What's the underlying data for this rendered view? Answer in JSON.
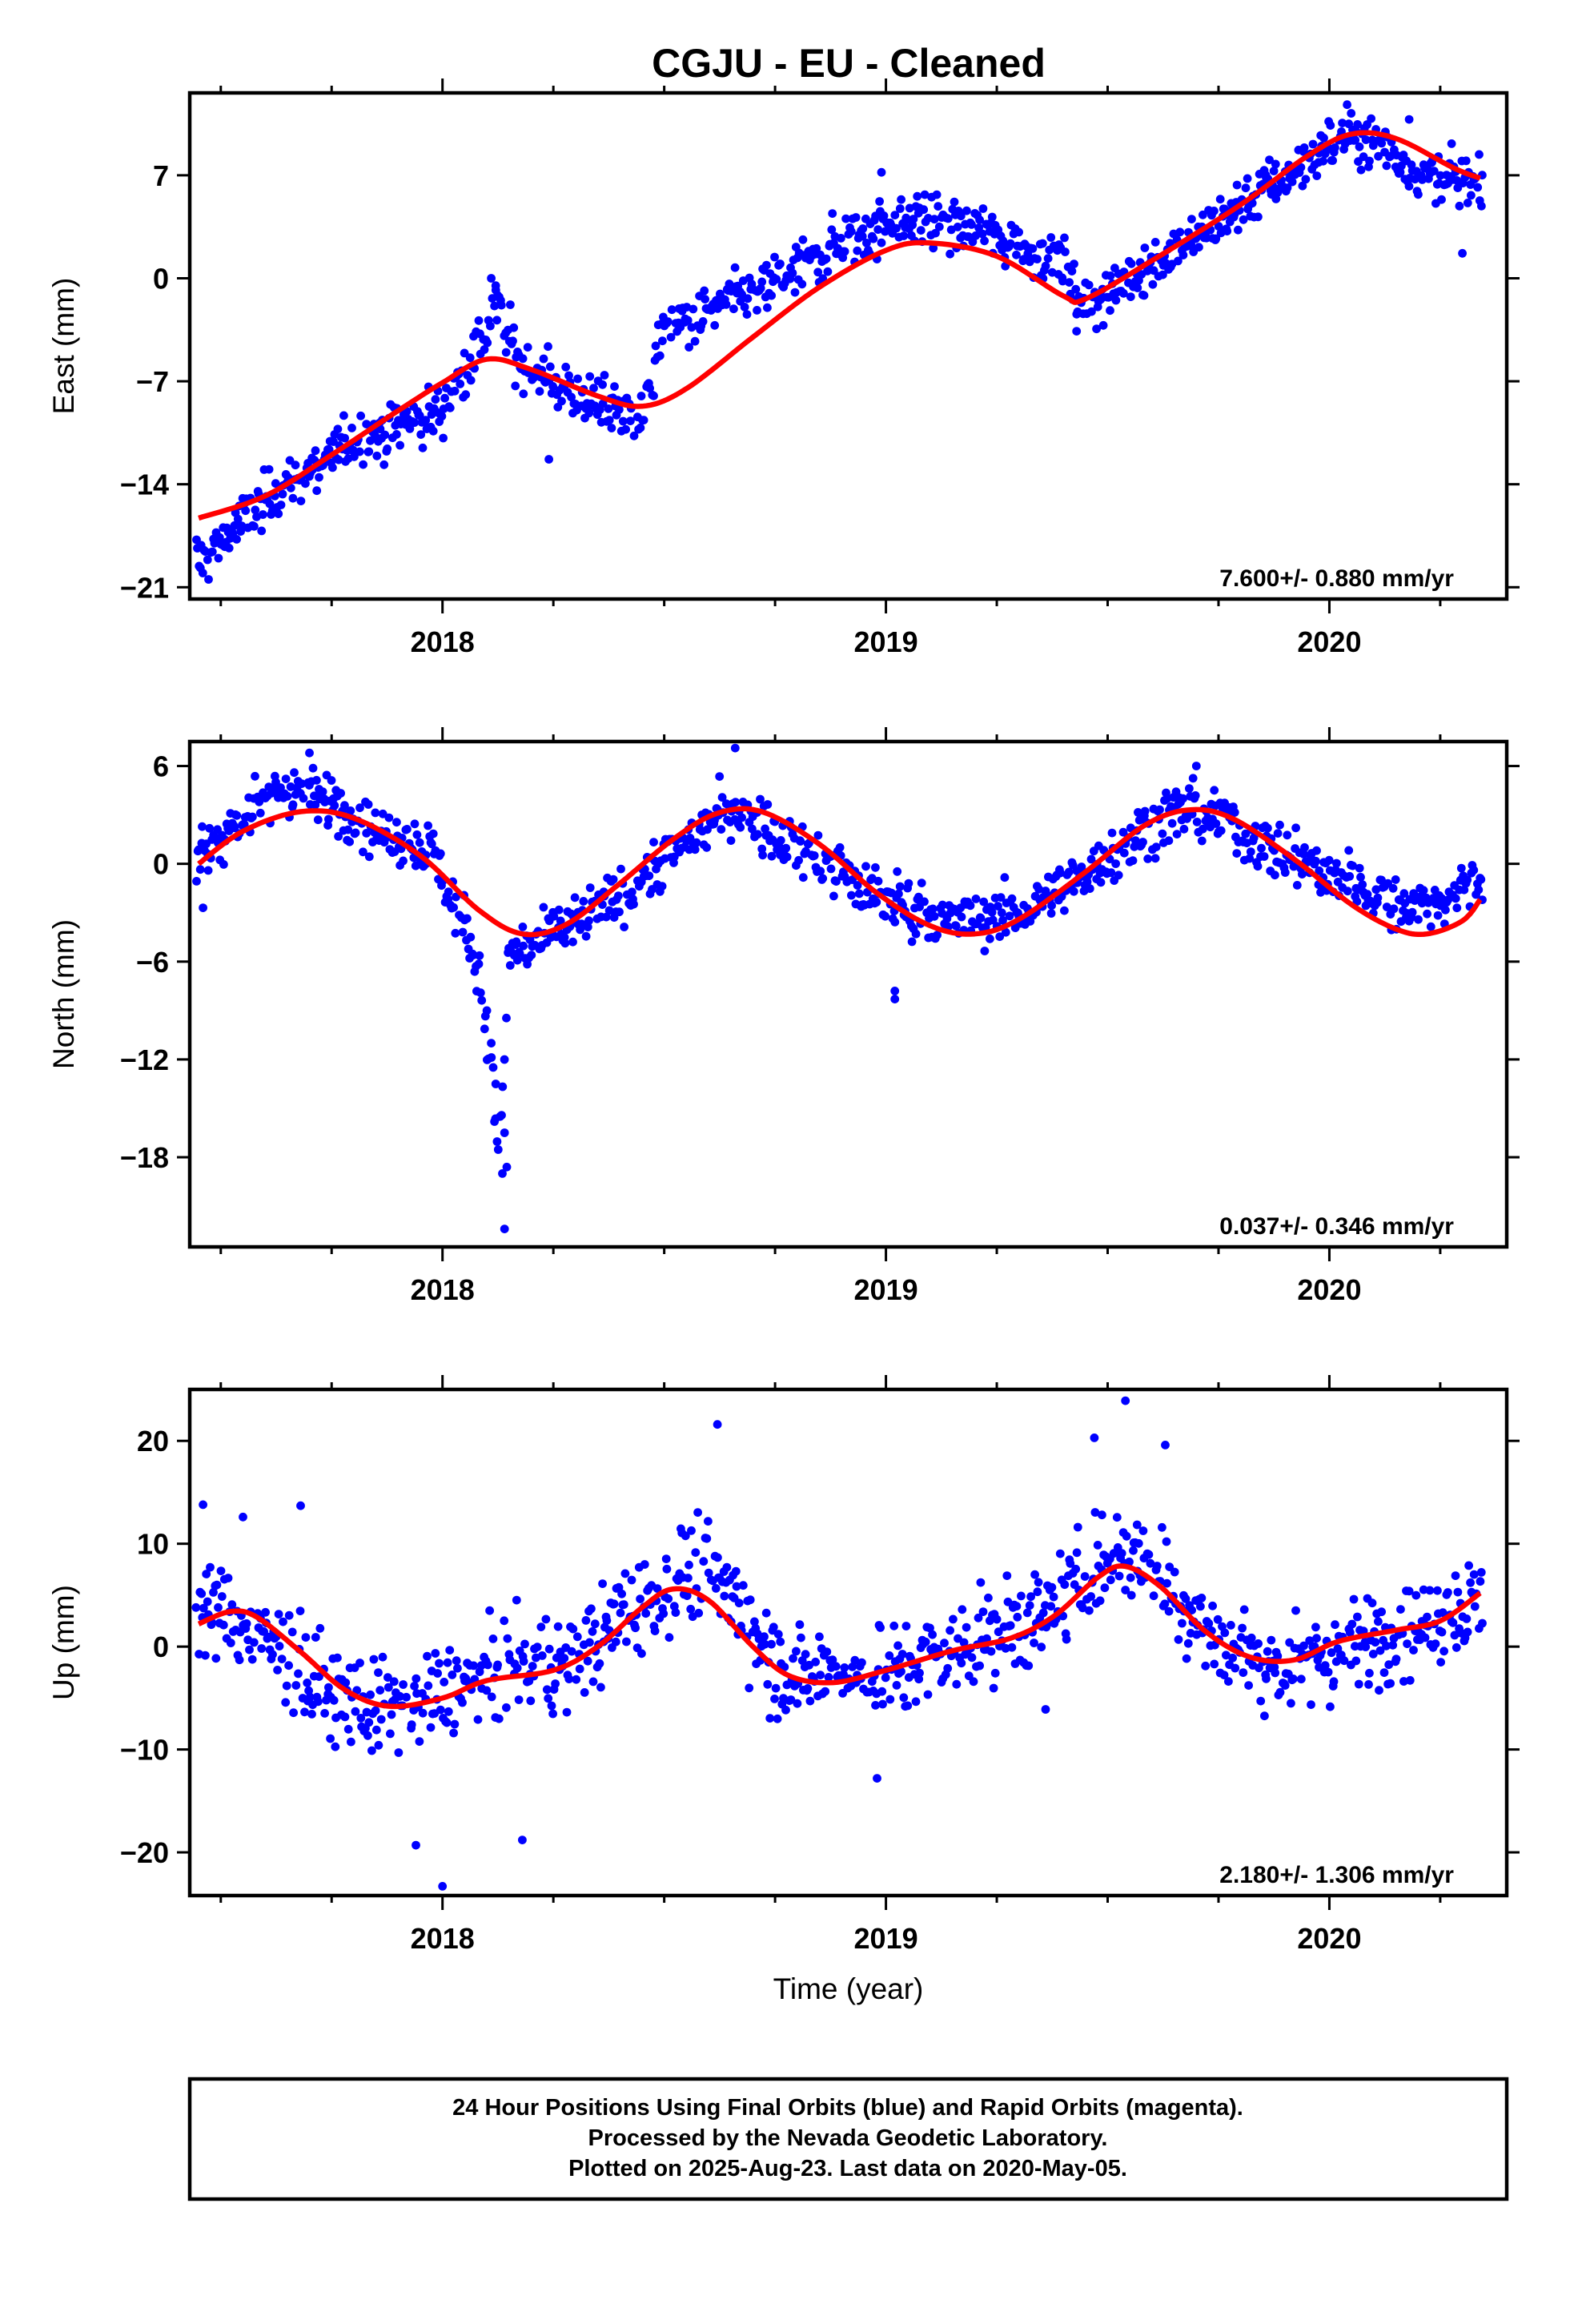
{
  "title": "CGJU  - EU - Cleaned",
  "colors": {
    "points": "#0000ff",
    "fit": "#ff0000",
    "frame": "#000000"
  },
  "footer": {
    "lines": [
      "24 Hour Positions Using Final Orbits (blue) and Rapid Orbits (magenta).",
      "Processed by the Nevada Geodetic Laboratory.",
      "Plotted on 2025-Aug-23. Last data on 2020-May-05."
    ]
  },
  "chart_data": [
    {
      "type": "scatter",
      "ylabel": "East (mm)",
      "xlabel": "",
      "xlim": [
        2017.43,
        2020.4
      ],
      "ylim": [
        -21.8,
        12.6
      ],
      "x_ticks": [
        2018,
        2019,
        2020
      ],
      "x_tick_labels": [
        "2018",
        "2019",
        "2020"
      ],
      "y_ticks": [
        -21,
        -14,
        -7,
        0,
        7
      ],
      "y_tick_labels": [
        "−21",
        "−14",
        "−7",
        "0",
        "7"
      ],
      "rate_label": "7.600+/- 0.880 mm/yr",
      "series": [
        {
          "name": "Final Orbits (blue)",
          "kind": "daily_positions",
          "trend": [
            [
              2017.45,
              -19.3
            ],
            [
              2017.6,
              -15.0
            ],
            [
              2017.8,
              -11.0
            ],
            [
              2018.0,
              -9.0
            ],
            [
              2018.08,
              -4.5
            ],
            [
              2018.12,
              -2.0
            ],
            [
              2018.18,
              -6.0
            ],
            [
              2018.3,
              -8.0
            ],
            [
              2018.45,
              -9.5
            ],
            [
              2018.5,
              -3.5
            ],
            [
              2018.7,
              -1.0
            ],
            [
              2018.9,
              2.5
            ],
            [
              2019.05,
              4.2
            ],
            [
              2019.2,
              3.5
            ],
            [
              2019.4,
              1.0
            ],
            [
              2019.43,
              -1.5
            ],
            [
              2019.5,
              -1.0
            ],
            [
              2019.7,
              3.0
            ],
            [
              2019.9,
              7.0
            ],
            [
              2020.05,
              10.0
            ],
            [
              2020.2,
              7.5
            ],
            [
              2020.34,
              6.0
            ]
          ],
          "scatter": 1.3,
          "outliers": [
            [
              2018.11,
              0.0
            ],
            [
              2018.12,
              -0.5
            ],
            [
              2018.24,
              -12.3
            ],
            [
              2019.43,
              -3.6
            ],
            [
              2020.3,
              1.7
            ],
            [
              2020.04,
              11.8
            ],
            [
              2020.18,
              10.8
            ],
            [
              2018.99,
              7.2
            ]
          ]
        },
        {
          "name": "Fit",
          "kind": "fit_line",
          "points": [
            [
              2017.45,
              -16.3
            ],
            [
              2017.6,
              -14.8
            ],
            [
              2017.75,
              -12.0
            ],
            [
              2017.9,
              -9.0
            ],
            [
              2018.0,
              -7.1
            ],
            [
              2018.1,
              -5.5
            ],
            [
              2018.2,
              -6.2
            ],
            [
              2018.35,
              -8.0
            ],
            [
              2018.45,
              -8.7
            ],
            [
              2018.55,
              -7.5
            ],
            [
              2018.7,
              -4.0
            ],
            [
              2018.85,
              -0.6
            ],
            [
              2019.0,
              1.9
            ],
            [
              2019.1,
              2.4
            ],
            [
              2019.25,
              1.5
            ],
            [
              2019.4,
              -1.2
            ],
            [
              2019.45,
              -1.4
            ],
            [
              2019.6,
              1.2
            ],
            [
              2019.8,
              5.0
            ],
            [
              2019.95,
              8.3
            ],
            [
              2020.05,
              9.8
            ],
            [
              2020.15,
              9.5
            ],
            [
              2020.28,
              7.5
            ],
            [
              2020.34,
              6.8
            ]
          ]
        }
      ]
    },
    {
      "type": "scatter",
      "ylabel": "North (mm)",
      "xlabel": "",
      "xlim": [
        2017.43,
        2020.4
      ],
      "ylim": [
        -23.5,
        7.5
      ],
      "x_ticks": [
        2018,
        2019,
        2020
      ],
      "x_tick_labels": [
        "2018",
        "2019",
        "2020"
      ],
      "y_ticks": [
        -18,
        -12,
        -6,
        0,
        6
      ],
      "y_tick_labels": [
        "−18",
        "−12",
        "−6",
        "0",
        "6"
      ],
      "rate_label": "0.037+/- 0.346 mm/yr",
      "series": [
        {
          "name": "Final Orbits (blue)",
          "kind": "daily_positions",
          "trend": [
            [
              2017.45,
              0.5
            ],
            [
              2017.55,
              3.0
            ],
            [
              2017.65,
              4.8
            ],
            [
              2017.75,
              3.8
            ],
            [
              2017.85,
              2.0
            ],
            [
              2017.98,
              1.0
            ],
            [
              2018.02,
              -2.0
            ],
            [
              2018.08,
              -6.0
            ],
            [
              2018.13,
              -18.0
            ],
            [
              2018.15,
              -5.5
            ],
            [
              2018.25,
              -4.5
            ],
            [
              2018.4,
              -2.0
            ],
            [
              2018.55,
              1.5
            ],
            [
              2018.65,
              3.5
            ],
            [
              2018.8,
              1.2
            ],
            [
              2018.95,
              -1.5
            ],
            [
              2019.05,
              -2.5
            ],
            [
              2019.15,
              -3.5
            ],
            [
              2019.3,
              -3.0
            ],
            [
              2019.45,
              -0.5
            ],
            [
              2019.6,
              2.5
            ],
            [
              2019.7,
              3.5
            ],
            [
              2019.85,
              1.0
            ],
            [
              2019.95,
              0.0
            ],
            [
              2020.05,
              -1.0
            ],
            [
              2020.15,
              -2.5
            ],
            [
              2020.25,
              -2.2
            ],
            [
              2020.34,
              -1.0
            ]
          ],
          "scatter": 1.2,
          "outliers": [
            [
              2017.46,
              -2.7
            ],
            [
              2018.1,
              -9.0
            ],
            [
              2018.11,
              -11.0
            ],
            [
              2018.12,
              -13.5
            ],
            [
              2018.13,
              -15.5
            ],
            [
              2018.14,
              -16.5
            ],
            [
              2018.135,
              -19.0
            ],
            [
              2018.145,
              -18.6
            ],
            [
              2018.14,
              -22.4
            ],
            [
              2019.02,
              -7.8
            ],
            [
              2019.02,
              -8.3
            ],
            [
              2017.7,
              6.8
            ],
            [
              2018.66,
              7.1
            ],
            [
              2019.7,
              6.0
            ]
          ]
        },
        {
          "name": "Fit",
          "kind": "fit_line",
          "points": [
            [
              2017.45,
              0.0
            ],
            [
              2017.55,
              2.0
            ],
            [
              2017.68,
              3.2
            ],
            [
              2017.8,
              2.8
            ],
            [
              2017.95,
              0.5
            ],
            [
              2018.08,
              -2.8
            ],
            [
              2018.18,
              -4.3
            ],
            [
              2018.28,
              -3.7
            ],
            [
              2018.4,
              -1.2
            ],
            [
              2018.52,
              1.5
            ],
            [
              2018.62,
              3.1
            ],
            [
              2018.72,
              3.2
            ],
            [
              2018.85,
              1.2
            ],
            [
              2018.98,
              -1.8
            ],
            [
              2019.1,
              -3.8
            ],
            [
              2019.2,
              -4.3
            ],
            [
              2019.3,
              -3.4
            ],
            [
              2019.45,
              -0.5
            ],
            [
              2019.58,
              2.3
            ],
            [
              2019.68,
              3.3
            ],
            [
              2019.78,
              2.8
            ],
            [
              2019.92,
              0.3
            ],
            [
              2020.05,
              -2.5
            ],
            [
              2020.15,
              -4.0
            ],
            [
              2020.22,
              -4.3
            ],
            [
              2020.3,
              -3.5
            ],
            [
              2020.34,
              -2.2
            ]
          ]
        }
      ]
    },
    {
      "type": "scatter",
      "ylabel": "Up (mm)",
      "xlabel": "Time (year)",
      "xlim": [
        2017.43,
        2020.4
      ],
      "ylim": [
        -24.2,
        25.0
      ],
      "x_ticks": [
        2018,
        2019,
        2020
      ],
      "x_tick_labels": [
        "2018",
        "2019",
        "2020"
      ],
      "y_ticks": [
        -20,
        -10,
        0,
        10,
        20
      ],
      "y_tick_labels": [
        "−20",
        "−10",
        "0",
        "10",
        "20"
      ],
      "rate_label": "2.180+/- 1.306 mm/yr",
      "series": [
        {
          "name": "Final Orbits (blue)",
          "kind": "daily_positions",
          "trend": [
            [
              2017.45,
              3.5
            ],
            [
              2017.55,
              2.5
            ],
            [
              2017.7,
              -3.0
            ],
            [
              2017.85,
              -6.5
            ],
            [
              2018.0,
              -4.5
            ],
            [
              2018.15,
              -2.5
            ],
            [
              2018.3,
              -1.0
            ],
            [
              2018.45,
              4.5
            ],
            [
              2018.55,
              7.5
            ],
            [
              2018.65,
              5.0
            ],
            [
              2018.75,
              -2.0
            ],
            [
              2018.9,
              -3.0
            ],
            [
              2019.05,
              -2.0
            ],
            [
              2019.2,
              0.5
            ],
            [
              2019.35,
              3.0
            ],
            [
              2019.5,
              9.0
            ],
            [
              2019.6,
              8.0
            ],
            [
              2019.75,
              0.0
            ],
            [
              2019.9,
              -2.0
            ],
            [
              2020.05,
              0.0
            ],
            [
              2020.2,
              2.0
            ],
            [
              2020.34,
              5.0
            ]
          ],
          "scatter": 3.3,
          "outliers": [
            [
              2017.46,
              13.8
            ],
            [
              2017.55,
              12.6
            ],
            [
              2017.68,
              13.7
            ],
            [
              2017.94,
              -19.3
            ],
            [
              2018.0,
              -23.3
            ],
            [
              2018.18,
              -18.8
            ],
            [
              2018.62,
              21.6
            ],
            [
              2018.98,
              -12.8
            ],
            [
              2019.47,
              20.3
            ],
            [
              2019.54,
              23.9
            ],
            [
              2019.63,
              19.6
            ],
            [
              2019.36,
              -6.1
            ]
          ]
        },
        {
          "name": "Fit",
          "kind": "fit_line",
          "points": [
            [
              2017.45,
              2.2
            ],
            [
              2017.52,
              3.4
            ],
            [
              2017.58,
              2.9
            ],
            [
              2017.68,
              -0.5
            ],
            [
              2017.78,
              -4.2
            ],
            [
              2017.88,
              -5.8
            ],
            [
              2018.0,
              -5.0
            ],
            [
              2018.1,
              -3.3
            ],
            [
              2018.25,
              -2.3
            ],
            [
              2018.35,
              0.0
            ],
            [
              2018.45,
              3.8
            ],
            [
              2018.52,
              5.6
            ],
            [
              2018.6,
              4.5
            ],
            [
              2018.7,
              0.0
            ],
            [
              2018.78,
              -2.8
            ],
            [
              2018.88,
              -3.5
            ],
            [
              2019.0,
              -2.3
            ],
            [
              2019.15,
              -0.4
            ],
            [
              2019.28,
              0.8
            ],
            [
              2019.38,
              3.0
            ],
            [
              2019.48,
              6.8
            ],
            [
              2019.54,
              7.8
            ],
            [
              2019.62,
              5.8
            ],
            [
              2019.72,
              1.5
            ],
            [
              2019.82,
              -1.0
            ],
            [
              2019.92,
              -1.3
            ],
            [
              2020.02,
              0.5
            ],
            [
              2020.15,
              1.6
            ],
            [
              2020.25,
              2.5
            ],
            [
              2020.34,
              5.2
            ]
          ]
        }
      ]
    }
  ]
}
